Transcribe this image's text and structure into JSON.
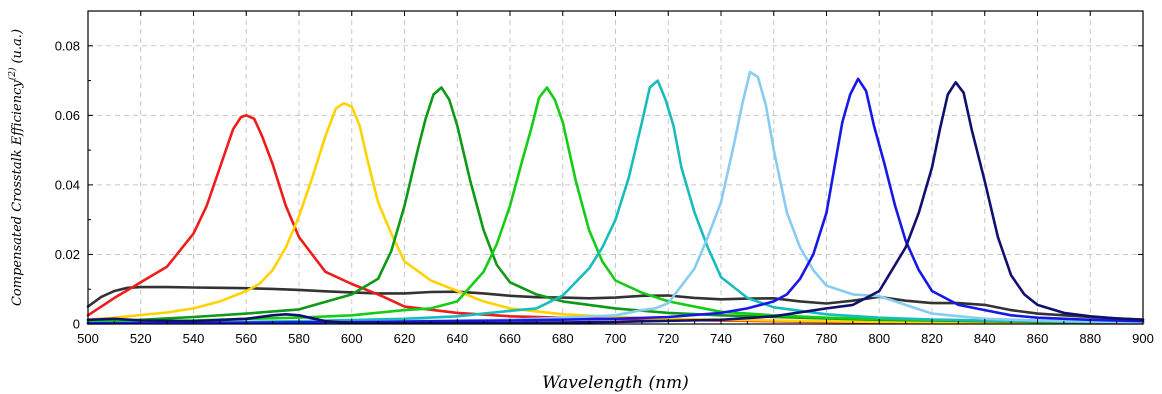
{
  "chart_data": {
    "type": "line",
    "title": "",
    "xlabel": "Wavelength (nm)",
    "ylabel_main": "Compensated Crosstalk Efficiency",
    "ylabel_sup": "(2)",
    "ylabel_unit": "(u.a.)",
    "xlim": [
      500,
      900
    ],
    "ylim": [
      0,
      0.09
    ],
    "x_ticks": [
      500,
      520,
      540,
      560,
      580,
      600,
      620,
      640,
      660,
      680,
      700,
      720,
      740,
      760,
      780,
      800,
      820,
      840,
      860,
      880,
      900
    ],
    "y_ticks": [
      0,
      0.02,
      0.04,
      0.06,
      0.08
    ],
    "y_tick_labels": [
      "0",
      "0.02",
      "0.04",
      "0.06",
      "0.08"
    ],
    "grid": true,
    "series": [
      {
        "color": "#333333",
        "x": [
          500,
          505,
          510,
          515,
          520,
          530,
          540,
          550,
          560,
          570,
          580,
          590,
          600,
          610,
          620,
          630,
          640,
          650,
          660,
          670,
          680,
          690,
          700,
          710,
          720,
          730,
          740,
          750,
          760,
          770,
          780,
          790,
          800,
          810,
          820,
          830,
          840,
          850,
          860,
          870,
          880,
          890,
          900
        ],
        "values": [
          0.005,
          0.0078,
          0.0095,
          0.0104,
          0.0106,
          0.0106,
          0.0105,
          0.0104,
          0.0103,
          0.0101,
          0.0098,
          0.0094,
          0.0091,
          0.0088,
          0.0088,
          0.0092,
          0.0093,
          0.0088,
          0.0081,
          0.0077,
          0.0076,
          0.0074,
          0.0076,
          0.0081,
          0.0082,
          0.0075,
          0.0071,
          0.0073,
          0.0074,
          0.0065,
          0.0059,
          0.0067,
          0.0078,
          0.0067,
          0.006,
          0.006,
          0.0055,
          0.004,
          0.003,
          0.0025,
          0.002,
          0.0016,
          0.0013
        ]
      },
      {
        "color": "#ee1c1c",
        "x": [
          500,
          510,
          520,
          530,
          540,
          545,
          550,
          555,
          558,
          560,
          563,
          566,
          570,
          575,
          580,
          590,
          600,
          610,
          620,
          640,
          660,
          680,
          700,
          720,
          740,
          760,
          780,
          800,
          820,
          840,
          860,
          880,
          900
        ],
        "values": [
          0.0025,
          0.0075,
          0.012,
          0.0165,
          0.026,
          0.034,
          0.045,
          0.056,
          0.0595,
          0.06,
          0.059,
          0.054,
          0.046,
          0.034,
          0.025,
          0.015,
          0.0115,
          0.0085,
          0.005,
          0.0032,
          0.0022,
          0.0018,
          0.0015,
          0.0012,
          0.001,
          0.0008,
          0.0006,
          0.0005,
          0.0004,
          0.0003,
          0.0003,
          0.0002,
          0.0002
        ]
      },
      {
        "color": "#ffd200",
        "x": [
          500,
          510,
          520,
          530,
          540,
          550,
          560,
          565,
          570,
          575,
          580,
          585,
          590,
          594,
          597,
          600,
          603,
          606,
          610,
          615,
          620,
          630,
          640,
          650,
          660,
          680,
          700,
          720,
          760,
          800,
          840,
          880,
          900
        ],
        "values": [
          0.0012,
          0.0018,
          0.0026,
          0.0033,
          0.0045,
          0.0065,
          0.0095,
          0.0115,
          0.0155,
          0.022,
          0.031,
          0.042,
          0.054,
          0.062,
          0.0635,
          0.0625,
          0.057,
          0.047,
          0.035,
          0.026,
          0.018,
          0.0125,
          0.0095,
          0.0065,
          0.0045,
          0.0028,
          0.002,
          0.0015,
          0.001,
          0.0006,
          0.0004,
          0.0003,
          0.0003
        ]
      },
      {
        "color": "#0e9a16",
        "x": [
          500,
          520,
          540,
          560,
          580,
          600,
          610,
          615,
          620,
          625,
          628,
          631,
          634,
          637,
          640,
          645,
          650,
          655,
          660,
          670,
          680,
          700,
          720,
          740,
          760,
          780,
          800,
          820,
          840,
          860,
          880,
          900
        ],
        "values": [
          0.0005,
          0.0012,
          0.002,
          0.003,
          0.0042,
          0.0085,
          0.013,
          0.021,
          0.034,
          0.05,
          0.059,
          0.066,
          0.068,
          0.0645,
          0.057,
          0.041,
          0.027,
          0.017,
          0.012,
          0.0085,
          0.0065,
          0.0045,
          0.0032,
          0.0025,
          0.002,
          0.0016,
          0.0012,
          0.001,
          0.0008,
          0.0006,
          0.0005,
          0.0005
        ]
      },
      {
        "color": "#16cc16",
        "x": [
          500,
          520,
          540,
          560,
          580,
          600,
          620,
          630,
          640,
          650,
          655,
          660,
          665,
          668,
          671,
          674,
          677,
          680,
          685,
          690,
          695,
          700,
          710,
          720,
          740,
          760,
          780,
          800,
          820,
          840,
          860,
          880,
          900
        ],
        "values": [
          0.0005,
          0.0008,
          0.001,
          0.0015,
          0.0018,
          0.0025,
          0.004,
          0.0045,
          0.0065,
          0.015,
          0.023,
          0.034,
          0.048,
          0.056,
          0.065,
          0.068,
          0.0645,
          0.058,
          0.041,
          0.027,
          0.018,
          0.0125,
          0.009,
          0.0065,
          0.0035,
          0.0025,
          0.0018,
          0.0014,
          0.0012,
          0.001,
          0.0008,
          0.0006,
          0.0005
        ]
      },
      {
        "color": "#18bcbc",
        "x": [
          500,
          540,
          580,
          620,
          640,
          660,
          670,
          680,
          690,
          695,
          700,
          705,
          710,
          713,
          716,
          719,
          722,
          725,
          730,
          735,
          740,
          750,
          760,
          780,
          800,
          820,
          840,
          860,
          880,
          900
        ],
        "values": [
          0.0002,
          0.0004,
          0.0008,
          0.0015,
          0.0022,
          0.0038,
          0.0045,
          0.0082,
          0.016,
          0.022,
          0.03,
          0.042,
          0.058,
          0.068,
          0.07,
          0.0645,
          0.057,
          0.045,
          0.032,
          0.022,
          0.0135,
          0.0075,
          0.0048,
          0.0028,
          0.0018,
          0.0013,
          0.001,
          0.0008,
          0.0006,
          0.0005
        ]
      },
      {
        "color": "#88ccf2",
        "x": [
          500,
          560,
          620,
          660,
          680,
          700,
          710,
          715,
          720,
          730,
          735,
          740,
          745,
          748,
          751,
          754,
          757,
          760,
          765,
          770,
          775,
          780,
          790,
          800,
          810,
          820,
          840,
          860,
          880,
          900
        ],
        "values": [
          0.0002,
          0.0004,
          0.0008,
          0.0012,
          0.0018,
          0.0025,
          0.004,
          0.0045,
          0.006,
          0.016,
          0.025,
          0.035,
          0.052,
          0.063,
          0.0725,
          0.071,
          0.063,
          0.05,
          0.032,
          0.022,
          0.0155,
          0.011,
          0.0085,
          0.008,
          0.0055,
          0.003,
          0.0015,
          0.001,
          0.0007,
          0.0005
        ]
      },
      {
        "color": "#1818e6",
        "x": [
          500,
          540,
          580,
          620,
          660,
          700,
          720,
          740,
          750,
          760,
          765,
          770,
          775,
          780,
          783,
          786,
          789,
          792,
          795,
          798,
          802,
          806,
          810,
          815,
          820,
          830,
          840,
          850,
          860,
          880,
          900
        ],
        "values": [
          0.0002,
          0.0003,
          0.0005,
          0.0007,
          0.001,
          0.0015,
          0.002,
          0.0032,
          0.0045,
          0.0065,
          0.0085,
          0.013,
          0.02,
          0.032,
          0.045,
          0.058,
          0.066,
          0.0705,
          0.067,
          0.057,
          0.046,
          0.034,
          0.024,
          0.0155,
          0.0095,
          0.0055,
          0.004,
          0.0025,
          0.0018,
          0.0012,
          0.0008
        ]
      },
      {
        "color": "#10106e",
        "x": [
          500,
          510,
          520,
          540,
          560,
          570,
          575,
          580,
          590,
          600,
          620,
          660,
          700,
          740,
          760,
          780,
          790,
          800,
          810,
          815,
          820,
          823,
          826,
          829,
          832,
          835,
          840,
          845,
          850,
          855,
          860,
          870,
          880,
          890,
          900
        ],
        "values": [
          0.0012,
          0.0015,
          0.001,
          0.0008,
          0.0015,
          0.0025,
          0.0028,
          0.0025,
          0.0008,
          0.0003,
          0.0003,
          0.0003,
          0.0006,
          0.0012,
          0.0022,
          0.0045,
          0.0055,
          0.0095,
          0.022,
          0.032,
          0.045,
          0.056,
          0.066,
          0.0695,
          0.0665,
          0.056,
          0.041,
          0.025,
          0.014,
          0.0085,
          0.0055,
          0.0032,
          0.0022,
          0.0016,
          0.0012
        ]
      }
    ]
  }
}
